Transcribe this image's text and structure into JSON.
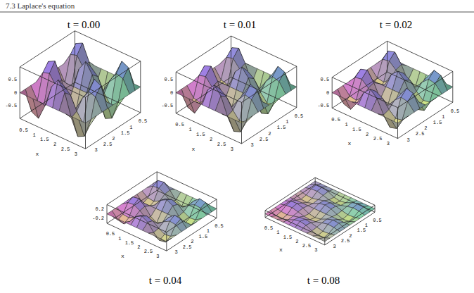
{
  "header": "7.3 Laplace's equation",
  "chart_data": [
    {
      "type": "surface",
      "title": "t = 0.00",
      "xlabel": "x",
      "x": [
        0,
        0.314,
        0.628,
        0.942,
        1.257,
        1.571,
        1.885,
        2.199,
        2.513,
        2.827,
        3.142
      ],
      "y": [
        0,
        0.314,
        0.628,
        0.942,
        1.257,
        1.571,
        1.885,
        2.199,
        2.513,
        2.827,
        3.142
      ],
      "xlim": [
        0,
        3.142
      ],
      "ylim": [
        0,
        3.142
      ],
      "zlim": [
        -1,
        1
      ],
      "xticks": [
        0.5,
        1,
        1.5,
        2,
        2.5,
        3
      ],
      "yticks": [
        0.5,
        1,
        1.5,
        2,
        2.5,
        3
      ],
      "zticks": [
        -0.5,
        0,
        0.5
      ],
      "z": [
        [
          0,
          0,
          0,
          0,
          0,
          0,
          0,
          0,
          0,
          0,
          0
        ],
        [
          0,
          0.77,
          0.48,
          -0.48,
          -0.77,
          0,
          0.77,
          0.48,
          -0.48,
          -0.77,
          0
        ],
        [
          0,
          0.9,
          0.56,
          -0.56,
          -0.9,
          0,
          0.9,
          0.56,
          -0.56,
          -0.9,
          0
        ],
        [
          0,
          0.29,
          0.18,
          -0.18,
          -0.29,
          0,
          0.29,
          0.18,
          -0.18,
          -0.29,
          0
        ],
        [
          0,
          -0.56,
          -0.35,
          0.35,
          0.56,
          0,
          -0.56,
          -0.35,
          0.35,
          0.56,
          0
        ],
        [
          0,
          -0.95,
          -0.59,
          0.59,
          0.95,
          0,
          -0.95,
          -0.59,
          0.59,
          0.95,
          0
        ],
        [
          0,
          -0.56,
          -0.35,
          0.35,
          0.56,
          0,
          -0.56,
          -0.35,
          0.35,
          0.56,
          0
        ],
        [
          0,
          0.29,
          0.18,
          -0.18,
          -0.29,
          0,
          0.29,
          0.18,
          -0.18,
          -0.29,
          0
        ],
        [
          0,
          0.9,
          0.56,
          -0.56,
          -0.9,
          0,
          0.9,
          0.56,
          -0.56,
          -0.9,
          0
        ],
        [
          0,
          0.77,
          0.48,
          -0.48,
          -0.77,
          0,
          0.77,
          0.48,
          -0.48,
          -0.77,
          0
        ],
        [
          0,
          0,
          0,
          0,
          0,
          0,
          0,
          0,
          0,
          0,
          0
        ]
      ]
    },
    {
      "type": "surface",
      "title": "t = 0.01",
      "xlabel": "x",
      "x": [
        0,
        0.314,
        0.628,
        0.942,
        1.257,
        1.571,
        1.885,
        2.199,
        2.513,
        2.827,
        3.142
      ],
      "y": [
        0,
        0.314,
        0.628,
        0.942,
        1.257,
        1.571,
        1.885,
        2.199,
        2.513,
        2.827,
        3.142
      ],
      "xlim": [
        0,
        3.142
      ],
      "ylim": [
        0,
        3.142
      ],
      "zlim": [
        -0.8,
        0.8
      ],
      "xticks": [
        0.5,
        1,
        1.5,
        2,
        2.5,
        3
      ],
      "yticks": [
        0.5,
        1,
        1.5,
        2,
        2.5,
        3
      ],
      "zticks": [
        -0.5,
        0,
        0.5
      ],
      "z": [
        [
          0,
          0,
          0,
          0,
          0,
          0,
          0,
          0,
          0,
          0,
          0
        ],
        [
          0,
          0.6,
          0.37,
          -0.37,
          -0.6,
          0,
          0.6,
          0.37,
          -0.37,
          -0.6,
          0
        ],
        [
          0,
          0.7,
          0.44,
          -0.44,
          -0.7,
          0,
          0.7,
          0.44,
          -0.44,
          -0.7,
          0
        ],
        [
          0,
          0.23,
          0.14,
          -0.14,
          -0.23,
          0,
          0.23,
          0.14,
          -0.14,
          -0.23,
          0
        ],
        [
          0,
          -0.44,
          -0.27,
          0.27,
          0.44,
          0,
          -0.44,
          -0.27,
          0.27,
          0.44,
          0
        ],
        [
          0,
          -0.74,
          -0.46,
          0.46,
          0.74,
          0,
          -0.74,
          -0.46,
          0.46,
          0.74,
          0
        ],
        [
          0,
          -0.44,
          -0.27,
          0.27,
          0.44,
          0,
          -0.44,
          -0.27,
          0.27,
          0.44,
          0
        ],
        [
          0,
          0.23,
          0.14,
          -0.14,
          -0.23,
          0,
          0.23,
          0.14,
          -0.14,
          -0.23,
          0
        ],
        [
          0,
          0.7,
          0.44,
          -0.44,
          -0.7,
          0,
          0.7,
          0.44,
          -0.44,
          -0.7,
          0
        ],
        [
          0,
          0.6,
          0.37,
          -0.37,
          -0.6,
          0,
          0.6,
          0.37,
          -0.37,
          -0.6,
          0
        ],
        [
          0,
          0,
          0,
          0,
          0,
          0,
          0,
          0,
          0,
          0,
          0
        ]
      ]
    },
    {
      "type": "surface",
      "title": "t = 0.02",
      "xlabel": "x",
      "x": [
        0,
        0.314,
        0.628,
        0.942,
        1.257,
        1.571,
        1.885,
        2.199,
        2.513,
        2.827,
        3.142
      ],
      "y": [
        0,
        0.314,
        0.628,
        0.942,
        1.257,
        1.571,
        1.885,
        2.199,
        2.513,
        2.827,
        3.142
      ],
      "xlim": [
        0,
        3.142
      ],
      "ylim": [
        0,
        3.142
      ],
      "zlim": [
        -0.6,
        0.6
      ],
      "xticks": [
        0.5,
        1,
        1.5,
        2,
        2.5,
        3
      ],
      "yticks": [
        0.5,
        1,
        1.5,
        2,
        2.5,
        3
      ],
      "zticks": [
        -0.5,
        0,
        0.5
      ],
      "z": [
        [
          0,
          0,
          0,
          0,
          0,
          0,
          0,
          0,
          0,
          0,
          0
        ],
        [
          0,
          0.47,
          0.29,
          -0.29,
          -0.47,
          0,
          0.47,
          0.29,
          -0.29,
          -0.47,
          0
        ],
        [
          0,
          0.55,
          0.34,
          -0.34,
          -0.55,
          0,
          0.55,
          0.34,
          -0.34,
          -0.55,
          0
        ],
        [
          0,
          0.18,
          0.11,
          -0.11,
          -0.18,
          0,
          0.18,
          0.11,
          -0.11,
          -0.18,
          0
        ],
        [
          0,
          -0.34,
          -0.21,
          0.21,
          0.34,
          0,
          -0.34,
          -0.21,
          0.21,
          0.34,
          0
        ],
        [
          0,
          -0.58,
          -0.36,
          0.36,
          0.58,
          0,
          -0.58,
          -0.36,
          0.36,
          0.58,
          0
        ],
        [
          0,
          -0.34,
          -0.21,
          0.21,
          0.34,
          0,
          -0.34,
          -0.21,
          0.21,
          0.34,
          0
        ],
        [
          0,
          0.18,
          0.11,
          -0.11,
          -0.18,
          0,
          0.18,
          0.11,
          -0.11,
          -0.18,
          0
        ],
        [
          0,
          0.55,
          0.34,
          -0.34,
          -0.55,
          0,
          0.55,
          0.34,
          -0.34,
          -0.55,
          0
        ],
        [
          0,
          0.47,
          0.29,
          -0.29,
          -0.47,
          0,
          0.47,
          0.29,
          -0.29,
          -0.47,
          0
        ],
        [
          0,
          0,
          0,
          0,
          0,
          0,
          0,
          0,
          0,
          0,
          0
        ]
      ]
    },
    {
      "type": "surface",
      "title": "t = 0.04",
      "xlabel": "x",
      "x": [
        0,
        0.314,
        0.628,
        0.942,
        1.257,
        1.571,
        1.885,
        2.199,
        2.513,
        2.827,
        3.142
      ],
      "y": [
        0,
        0.314,
        0.628,
        0.942,
        1.257,
        1.571,
        1.885,
        2.199,
        2.513,
        2.827,
        3.142
      ],
      "xlim": [
        0,
        3.142
      ],
      "ylim": [
        0,
        3.142
      ],
      "zlim": [
        -0.4,
        0.4
      ],
      "xticks": [
        0.5,
        1,
        1.5,
        2,
        2.5,
        3
      ],
      "yticks": [
        0.5,
        1,
        1.5,
        2,
        2.5,
        3
      ],
      "zticks": [
        -0.2,
        0.2
      ],
      "z": [
        [
          0,
          0,
          0,
          0,
          0,
          0,
          0,
          0,
          0,
          0,
          0
        ],
        [
          0,
          0.28,
          0.18,
          -0.18,
          -0.28,
          0,
          0.28,
          0.18,
          -0.18,
          -0.28,
          0
        ],
        [
          0,
          0.33,
          0.21,
          -0.21,
          -0.33,
          0,
          0.33,
          0.21,
          -0.21,
          -0.33,
          0
        ],
        [
          0,
          0.11,
          0.07,
          -0.07,
          -0.11,
          0,
          0.11,
          0.07,
          -0.07,
          -0.11,
          0
        ],
        [
          0,
          -0.21,
          -0.13,
          0.13,
          0.21,
          0,
          -0.21,
          -0.13,
          0.13,
          0.21,
          0
        ],
        [
          0,
          -0.35,
          -0.22,
          0.22,
          0.35,
          0,
          -0.35,
          -0.22,
          0.22,
          0.35,
          0
        ],
        [
          0,
          -0.21,
          -0.13,
          0.13,
          0.21,
          0,
          -0.21,
          -0.13,
          0.13,
          0.21,
          0
        ],
        [
          0,
          0.11,
          0.07,
          -0.07,
          -0.11,
          0,
          0.11,
          0.07,
          -0.07,
          -0.11,
          0
        ],
        [
          0,
          0.33,
          0.21,
          -0.21,
          -0.33,
          0,
          0.33,
          0.21,
          -0.21,
          -0.33,
          0
        ],
        [
          0,
          0.28,
          0.18,
          -0.18,
          -0.28,
          0,
          0.28,
          0.18,
          -0.18,
          -0.28,
          0
        ],
        [
          0,
          0,
          0,
          0,
          0,
          0,
          0,
          0,
          0,
          0,
          0
        ]
      ]
    },
    {
      "type": "surface",
      "title": "t = 0.08",
      "xlabel": "x",
      "x": [
        0,
        0.314,
        0.628,
        0.942,
        1.257,
        1.571,
        1.885,
        2.199,
        2.513,
        2.827,
        3.142
      ],
      "y": [
        0,
        0.314,
        0.628,
        0.942,
        1.257,
        1.571,
        1.885,
        2.199,
        2.513,
        2.827,
        3.142
      ],
      "xlim": [
        0,
        3.142
      ],
      "ylim": [
        0,
        3.142
      ],
      "zlim": [
        -0.15,
        0.15
      ],
      "xticks": [
        0.5,
        1,
        1.5,
        2,
        2.5,
        3
      ],
      "yticks": [
        0.5,
        1,
        1.5,
        2,
        2.5,
        3
      ],
      "z": [
        [
          0,
          0,
          0,
          0,
          0,
          0,
          0,
          0,
          0,
          0,
          0
        ],
        [
          0,
          0.1,
          0.06,
          -0.06,
          -0.1,
          0,
          0.1,
          0.06,
          -0.06,
          -0.1,
          0
        ],
        [
          0,
          0.12,
          0.08,
          -0.08,
          -0.12,
          0,
          0.12,
          0.08,
          -0.08,
          -0.12,
          0
        ],
        [
          0,
          0.04,
          0.02,
          -0.02,
          -0.04,
          0,
          0.04,
          0.02,
          -0.02,
          -0.04,
          0
        ],
        [
          0,
          -0.08,
          -0.05,
          0.05,
          0.08,
          0,
          -0.08,
          -0.05,
          0.05,
          0.08,
          0
        ],
        [
          0,
          -0.13,
          -0.08,
          0.08,
          0.13,
          0,
          -0.13,
          -0.08,
          0.08,
          0.13,
          0
        ],
        [
          0,
          -0.08,
          -0.05,
          0.05,
          0.08,
          0,
          -0.08,
          -0.05,
          0.05,
          0.08,
          0
        ],
        [
          0,
          0.04,
          0.02,
          -0.02,
          -0.04,
          0,
          0.04,
          0.02,
          -0.02,
          -0.04,
          0
        ],
        [
          0,
          0.12,
          0.08,
          -0.08,
          -0.12,
          0,
          0.12,
          0.08,
          -0.08,
          -0.12,
          0
        ],
        [
          0,
          0.1,
          0.06,
          -0.06,
          -0.1,
          0,
          0.1,
          0.06,
          -0.06,
          -0.1,
          0
        ],
        [
          0,
          0,
          0,
          0,
          0,
          0,
          0,
          0,
          0,
          0,
          0
        ]
      ]
    }
  ]
}
